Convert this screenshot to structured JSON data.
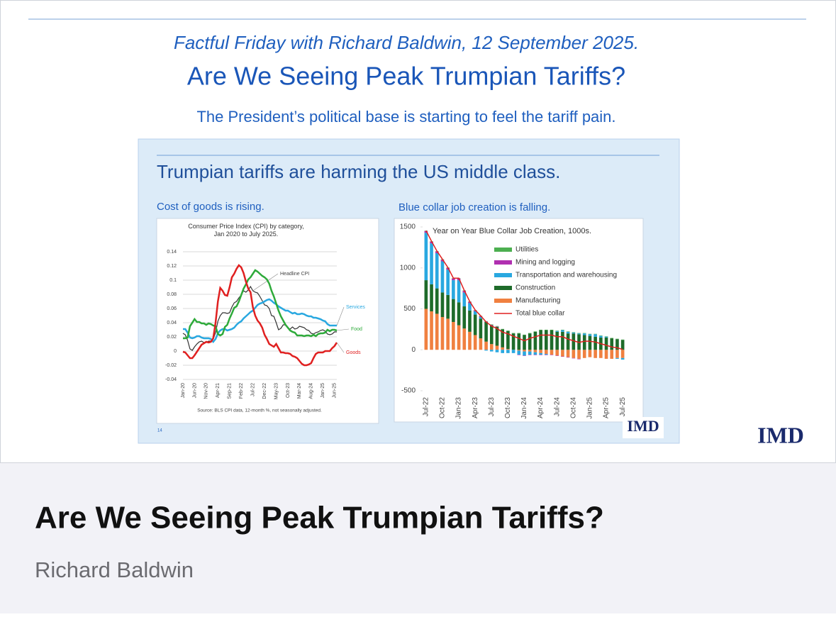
{
  "header": {
    "series_title": "Factful Friday with Richard Baldwin, 12 September 2025.",
    "title": "Are We Seeing Peak Trumpian Tariffs?",
    "subtitle": "The President’s political base is starting to feel the tariff pain."
  },
  "slide": {
    "heading": "Trumpian tariffs are harming the US middle class.",
    "left_caption": "Cost of goods is rising.",
    "right_caption": "Blue collar job creation is falling.",
    "page_number": "14",
    "logo": "IMD"
  },
  "chart_data": [
    {
      "type": "line",
      "title": "Consumer Price Index (CPI) by category, Jan 2020 to July 2025.",
      "source": "Source: BLS CPI data, 12-month %, not seasonally adjusted.",
      "categories": [
        "Jan-20",
        null,
        null,
        null,
        null,
        "Jun-20",
        null,
        null,
        null,
        null,
        "Nov-20",
        null,
        null,
        null,
        null,
        "Apr-21",
        null,
        null,
        null,
        null,
        "Sep-21",
        null,
        null,
        null,
        null,
        "Feb-22",
        null,
        null,
        null,
        null,
        "Jul-22",
        null,
        null,
        null,
        null,
        "Dec-22",
        null,
        null,
        null,
        null,
        "May-23",
        null,
        null,
        null,
        null,
        "Oct-23",
        null,
        null,
        null,
        null,
        "Mar-24",
        null,
        null,
        null,
        null,
        "Aug-24",
        null,
        null,
        null,
        null,
        "Jan-25",
        null,
        null,
        null,
        null,
        "Jun-25",
        null
      ],
      "series": [
        {
          "name": "Headline CPI",
          "color": "#333333",
          "values": [
            0.025,
            0.023,
            0.015,
            0.003,
            0.001,
            0.006,
            0.01,
            0.013,
            0.014,
            0.012,
            0.012,
            0.014,
            0.014,
            0.017,
            0.026,
            0.042,
            0.05,
            0.054,
            0.054,
            0.053,
            0.054,
            0.062,
            0.068,
            0.07,
            0.075,
            0.079,
            0.085,
            0.083,
            0.086,
            0.091,
            0.085,
            0.083,
            0.082,
            0.077,
            0.071,
            0.065,
            0.064,
            0.06,
            0.05,
            0.049,
            0.04,
            0.03,
            0.032,
            0.037,
            0.037,
            0.032,
            0.031,
            0.034,
            0.031,
            0.032,
            0.035,
            0.034,
            0.033,
            0.03,
            0.029,
            0.025,
            0.024,
            0.026,
            0.027,
            0.029,
            0.03,
            0.028,
            0.024,
            0.023,
            0.024,
            0.027,
            0.027
          ]
        },
        {
          "name": "Services",
          "color": "#29a8e0",
          "values": [
            0.031,
            0.031,
            0.026,
            0.019,
            0.018,
            0.019,
            0.021,
            0.021,
            0.019,
            0.018,
            0.018,
            0.018,
            0.017,
            0.013,
            0.017,
            0.025,
            0.029,
            0.031,
            0.031,
            0.029,
            0.03,
            0.031,
            0.033,
            0.037,
            0.04,
            0.042,
            0.046,
            0.049,
            0.052,
            0.055,
            0.057,
            0.061,
            0.065,
            0.067,
            0.068,
            0.07,
            0.072,
            0.073,
            0.071,
            0.068,
            0.066,
            0.063,
            0.061,
            0.059,
            0.057,
            0.057,
            0.055,
            0.053,
            0.054,
            0.052,
            0.052,
            0.053,
            0.052,
            0.05,
            0.049,
            0.049,
            0.047,
            0.047,
            0.046,
            0.045,
            0.043,
            0.042,
            0.038,
            0.036,
            0.036,
            0.036,
            0.036
          ]
        },
        {
          "name": "Food",
          "color": "#2eaa3a",
          "values": [
            0.018,
            0.018,
            0.019,
            0.035,
            0.04,
            0.045,
            0.041,
            0.041,
            0.039,
            0.039,
            0.037,
            0.039,
            0.038,
            0.036,
            0.035,
            0.024,
            0.022,
            0.024,
            0.034,
            0.037,
            0.046,
            0.053,
            0.061,
            0.063,
            0.07,
            0.079,
            0.088,
            0.094,
            0.101,
            0.104,
            0.109,
            0.114,
            0.112,
            0.109,
            0.106,
            0.104,
            0.101,
            0.095,
            0.085,
            0.077,
            0.067,
            0.057,
            0.049,
            0.043,
            0.037,
            0.033,
            0.029,
            0.027,
            0.026,
            0.022,
            0.022,
            0.022,
            0.021,
            0.022,
            0.022,
            0.021,
            0.023,
            0.021,
            0.024,
            0.025,
            0.025,
            0.026,
            0.03,
            0.028,
            0.03,
            0.03,
            0.029
          ]
        },
        {
          "name": "Goods",
          "color": "#e02020",
          "values": [
            -0.001,
            -0.002,
            -0.006,
            -0.01,
            -0.01,
            -0.006,
            -0.001,
            0.004,
            0.009,
            0.011,
            0.013,
            0.012,
            0.013,
            0.018,
            0.04,
            0.07,
            0.089,
            0.085,
            0.079,
            0.078,
            0.09,
            0.104,
            0.109,
            0.116,
            0.121,
            0.118,
            0.11,
            0.098,
            0.088,
            0.083,
            0.062,
            0.05,
            0.043,
            0.039,
            0.033,
            0.023,
            0.017,
            0.01,
            0.008,
            0.006,
            0.01,
            0.004,
            -0.002,
            -0.002,
            -0.003,
            -0.003,
            -0.004,
            -0.007,
            -0.008,
            -0.01,
            -0.014,
            -0.018,
            -0.02,
            -0.02,
            -0.019,
            -0.017,
            -0.01,
            -0.004,
            -0.002,
            -0.002,
            -0.002,
            0.0,
            0.0,
            0.0,
            0.004,
            0.007,
            0.012
          ]
        }
      ],
      "ylim": [
        -0.04,
        0.14
      ],
      "yticks": [
        -0.04,
        -0.02,
        0,
        0.02,
        0.04,
        0.06,
        0.08,
        0.1,
        0.12,
        0.14
      ],
      "grid": true
    },
    {
      "type": "bar",
      "stacked": true,
      "title": "Year on Year Blue Collar Job Creation, 1000s.",
      "categories": [
        "Jul-22",
        null,
        null,
        "Oct-22",
        null,
        null,
        "Jan-23",
        null,
        null,
        "Apr-23",
        null,
        null,
        "Jul-23",
        null,
        null,
        "Oct-23",
        null,
        null,
        "Jan-24",
        null,
        null,
        "Apr-24",
        null,
        null,
        "Jul-24",
        null,
        null,
        "Oct-24",
        null,
        null,
        "Jan-25",
        null,
        null,
        "Apr-25",
        null,
        null,
        "Jul-25"
      ],
      "series": [
        {
          "name": "Utilities",
          "color": "#4caf50",
          "values": [
            5,
            5,
            5,
            5,
            5,
            5,
            5,
            5,
            5,
            5,
            5,
            5,
            5,
            5,
            5,
            5,
            5,
            5,
            5,
            5,
            5,
            5,
            5,
            5,
            5,
            5,
            5,
            5,
            5,
            5,
            5,
            5,
            5,
            5,
            5,
            5,
            5
          ]
        },
        {
          "name": "Mining and logging",
          "color": "#b030b0",
          "values": [
            20,
            20,
            20,
            20,
            20,
            20,
            20,
            20,
            15,
            10,
            10,
            5,
            5,
            5,
            0,
            0,
            0,
            -5,
            -5,
            -5,
            -5,
            -5,
            -5,
            -5,
            -5,
            -5,
            -5,
            -5,
            -5,
            0,
            0,
            0,
            0,
            0,
            0,
            0,
            0
          ]
        },
        {
          "name": "Transportation and warehousing",
          "color": "#29a8e0",
          "values": [
            580,
            500,
            430,
            380,
            310,
            230,
            270,
            170,
            90,
            40,
            20,
            -10,
            -20,
            -30,
            -40,
            -40,
            -40,
            -50,
            -50,
            -40,
            -30,
            -20,
            -10,
            0,
            10,
            20,
            20,
            10,
            10,
            20,
            20,
            30,
            20,
            10,
            0,
            -10,
            -20
          ]
        },
        {
          "name": "Construction",
          "color": "#1e6b2a",
          "values": [
            350,
            330,
            310,
            300,
            290,
            280,
            280,
            270,
            260,
            250,
            240,
            240,
            230,
            230,
            220,
            220,
            200,
            200,
            180,
            200,
            220,
            240,
            240,
            240,
            220,
            220,
            200,
            200,
            190,
            180,
            170,
            160,
            150,
            150,
            140,
            130,
            120
          ]
        },
        {
          "name": "Manufacturing",
          "color": "#f08040",
          "values": [
            500,
            470,
            440,
            400,
            380,
            340,
            300,
            260,
            220,
            180,
            140,
            100,
            70,
            50,
            30,
            10,
            0,
            -10,
            -20,
            -20,
            -30,
            -40,
            -50,
            -60,
            -70,
            -80,
            -90,
            -100,
            -110,
            -100,
            -90,
            -100,
            -100,
            -110,
            -110,
            -100,
            -100
          ]
        },
        {
          "name": "Total blue collar",
          "color": "#e02020",
          "type": "line",
          "values": [
            1455,
            1325,
            1205,
            1105,
            1005,
            875,
            875,
            725,
            590,
            485,
            415,
            340,
            290,
            260,
            215,
            195,
            165,
            140,
            110,
            140,
            160,
            180,
            180,
            180,
            160,
            160,
            130,
            110,
            90,
            105,
            105,
            95,
            75,
            55,
            35,
            25,
            5
          ]
        }
      ],
      "ylim": [
        -500,
        1500
      ],
      "yticks": [
        -500,
        0,
        500,
        1000,
        1500
      ],
      "grid": false
    }
  ],
  "logo": "IMD",
  "card": {
    "title": "Are We Seeing Peak Trumpian Tariffs?",
    "author": "Richard Baldwin"
  }
}
